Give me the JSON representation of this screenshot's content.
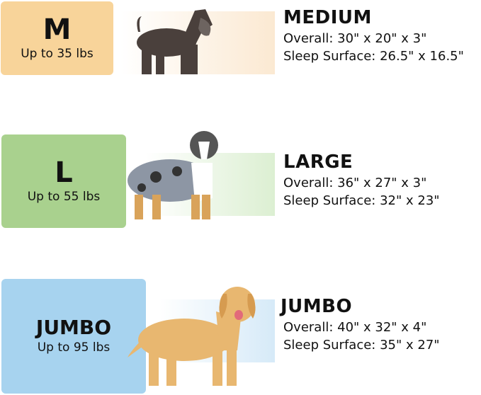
{
  "sizes": [
    {
      "code": "M",
      "weight": "Up to 35 lbs",
      "name": "MEDIUM",
      "overall": "Overall: 30\" x 20\" x 3\"",
      "sleep": "Sleep Surface: 26.5\" x 16.5\"",
      "color": "#f8d49a",
      "band": "#fbe9d2",
      "dog": "schnauzer-icon"
    },
    {
      "code": "L",
      "weight": "Up to 55 lbs",
      "name": "LARGE",
      "overall": "Overall: 36\" x 27\" x 3\"",
      "sleep": "Sleep Surface: 32\" x 23\"",
      "color": "#a9d18e",
      "band": "#dcefd2",
      "dog": "australian-shepherd-icon"
    },
    {
      "code": "JUMBO",
      "weight": "Up to 95 lbs",
      "name": "JUMBO",
      "overall": "Overall: 40\" x 32\" x 4\"",
      "sleep": "Sleep Surface: 35\" x 27\"",
      "color": "#a7d3ef",
      "band": "#d6eaf8",
      "dog": "golden-retriever-icon"
    }
  ]
}
